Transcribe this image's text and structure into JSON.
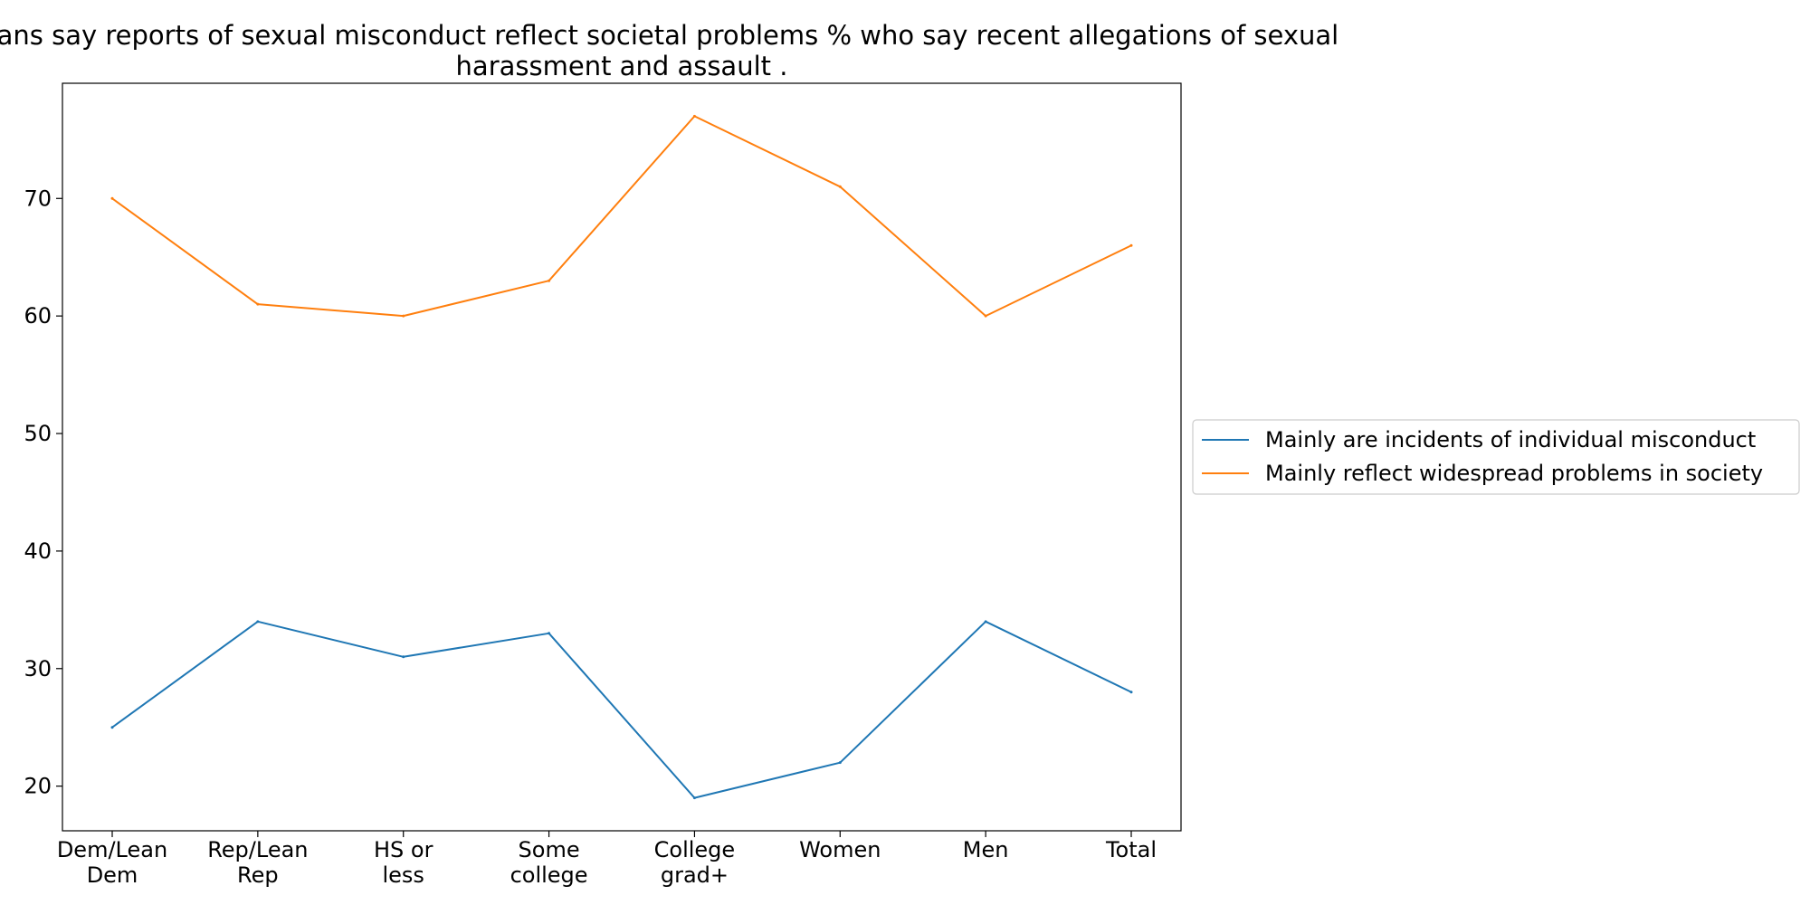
{
  "chart_data": {
    "type": "line",
    "title_lines": [
      "Americans say reports of sexual misconduct reflect societal problems % who say recent allegations of sexual",
      "harassment and assault ."
    ],
    "xlabel": "",
    "ylabel": "",
    "categories": [
      [
        "Dem/Lean",
        "Dem"
      ],
      [
        "Rep/Lean",
        "Rep"
      ],
      [
        "HS or",
        "less"
      ],
      [
        "Some",
        "college"
      ],
      [
        "College",
        "grad+"
      ],
      [
        "Women"
      ],
      [
        "Men"
      ],
      [
        "Total"
      ]
    ],
    "ylim": [
      16.2,
      79.8
    ],
    "yticks": [
      20,
      30,
      40,
      50,
      60,
      70
    ],
    "grid": false,
    "legend_position": "right",
    "series": [
      {
        "name": "Mainly are incidents of individual misconduct",
        "color": "#1f77b4",
        "values": [
          25,
          34,
          31,
          33,
          19,
          22,
          34,
          28
        ]
      },
      {
        "name": "Mainly reflect widespread problems in society",
        "color": "#ff7f0e",
        "values": [
          70,
          61,
          60,
          63,
          77,
          71,
          60,
          66
        ]
      }
    ]
  }
}
